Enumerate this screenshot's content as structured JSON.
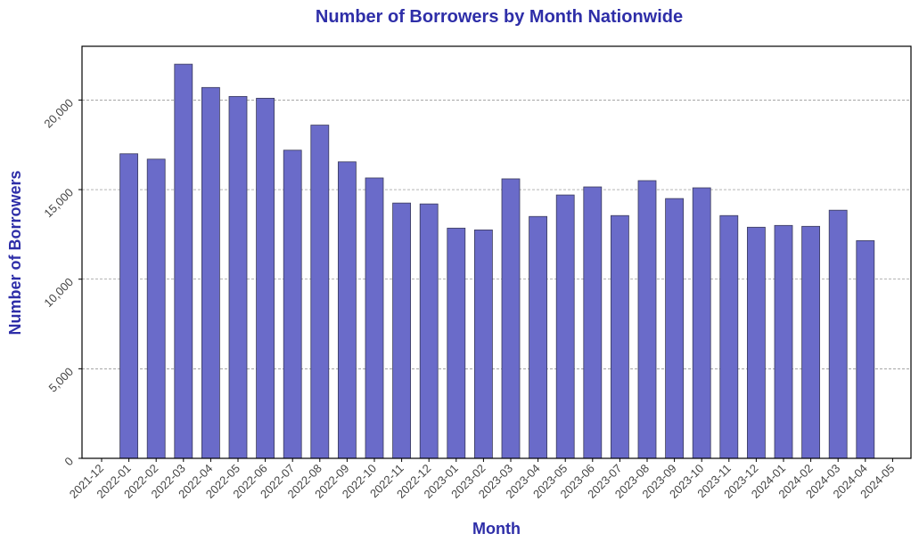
{
  "chart_data": {
    "type": "bar",
    "title": "Number of Borrowers by Month Nationwide",
    "xlabel": "Month",
    "ylabel": "Number of Borrowers",
    "x_ticks": [
      "2021-12",
      "2022-01",
      "2022-02",
      "2022-03",
      "2022-04",
      "2022-05",
      "2022-06",
      "2022-07",
      "2022-08",
      "2022-09",
      "2022-10",
      "2022-11",
      "2022-12",
      "2023-01",
      "2023-02",
      "2023-03",
      "2023-04",
      "2023-05",
      "2023-06",
      "2023-07",
      "2023-08",
      "2023-09",
      "2023-10",
      "2023-11",
      "2023-12",
      "2024-01",
      "2024-02",
      "2024-03",
      "2024-04",
      "2024-05"
    ],
    "categories": [
      "2022-01",
      "2022-02",
      "2022-03",
      "2022-04",
      "2022-05",
      "2022-06",
      "2022-07",
      "2022-08",
      "2022-09",
      "2022-10",
      "2022-11",
      "2022-12",
      "2023-01",
      "2023-02",
      "2023-03",
      "2023-04",
      "2023-05",
      "2023-06",
      "2023-07",
      "2023-08",
      "2023-09",
      "2023-10",
      "2023-11",
      "2023-12",
      "2024-01",
      "2024-02",
      "2024-03",
      "2024-04"
    ],
    "values": [
      17000,
      16700,
      22000,
      20700,
      20200,
      20100,
      17200,
      18600,
      16550,
      15650,
      14250,
      14200,
      12850,
      12750,
      15600,
      13500,
      14700,
      15150,
      13550,
      15500,
      14500,
      15100,
      13550,
      12900,
      13000,
      12950,
      13850,
      12150
    ],
    "y_ticks": [
      0,
      5000,
      10000,
      15000,
      20000
    ],
    "y_tick_labels": [
      "0",
      "5,000",
      "10,000",
      "15,000",
      "20,000"
    ],
    "ylim": [
      0,
      23000
    ],
    "grid": "horizontal dashed",
    "colors": {
      "bar": "#6a6bc9",
      "bar_edge": "#3a3a5a",
      "title": "#2e2ea8",
      "grid": "#888888"
    }
  }
}
